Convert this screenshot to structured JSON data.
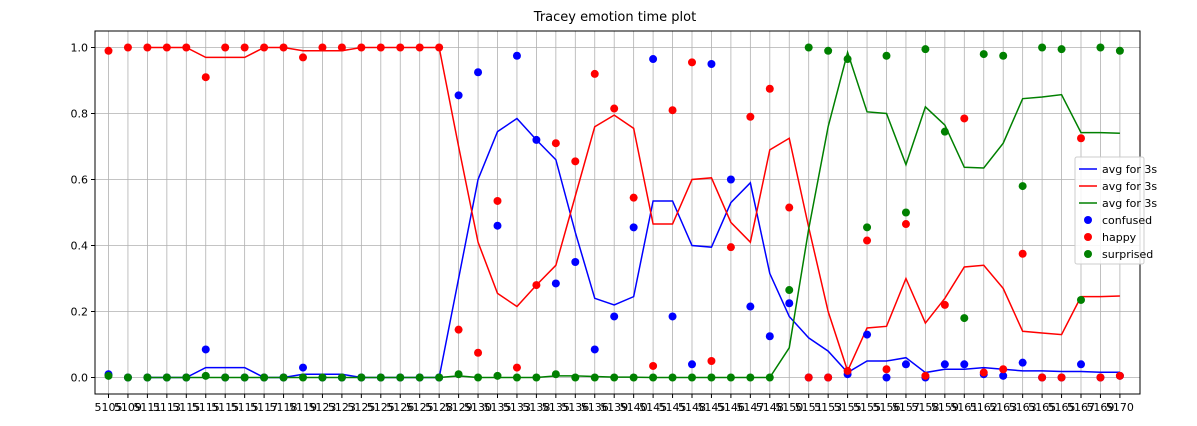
{
  "chart_data": {
    "type": "line",
    "title": "Tracey emotion time plot",
    "xlabel": "",
    "ylabel": "",
    "ylim": [
      -0.05,
      1.05
    ],
    "yticks": [
      "0.0",
      "0.2",
      "0.4",
      "0.6",
      "0.8",
      "1.0"
    ],
    "ytick_values": [
      0,
      0.2,
      0.4,
      0.6,
      0.8,
      1.0
    ],
    "xtick_labels": [
      "5105",
      "5109",
      "5111",
      "5113",
      "5115",
      "5115",
      "5115",
      "5115",
      "5117",
      "5118",
      "5119",
      "5123",
      "5123",
      "5125",
      "5125",
      "5126",
      "5125",
      "5128",
      "5129",
      "5130",
      "5135",
      "5133",
      "5138",
      "5135",
      "5136",
      "5136",
      "5139",
      "5140",
      "5145",
      "5145",
      "5148",
      "5145",
      "5146",
      "5147",
      "5148",
      "5150",
      "5151",
      "5153",
      "5155",
      "5155",
      "5156",
      "5157",
      "5158",
      "5159",
      "5161",
      "5162",
      "5163",
      "5163",
      "5165",
      "5165",
      "5167",
      "5169",
      "5170"
    ],
    "grid": true,
    "legend_position": "right",
    "colors": {
      "confused": "#0000ff",
      "happy": "#ff0000",
      "surprised": "#008000"
    },
    "line_series": [
      {
        "name": "avg for 3s",
        "color": "#0000ff",
        "values": [
          null,
          null,
          0.0,
          0.0,
          0.0,
          0.03,
          0.03,
          0.03,
          0.0,
          0.0,
          0.01,
          0.01,
          0.01,
          0.0,
          0.0,
          0.0,
          0.0,
          0.0,
          0.3,
          0.6,
          0.745,
          0.785,
          0.72,
          0.66,
          0.44,
          0.24,
          0.22,
          0.245,
          0.535,
          0.535,
          0.4,
          0.395,
          0.53,
          0.59,
          0.315,
          0.185,
          0.12,
          0.08,
          0.015,
          0.05,
          0.05,
          0.06,
          0.015,
          0.025,
          0.025,
          0.03,
          0.025,
          0.02,
          0.02,
          0.018,
          0.018,
          0.016,
          0.016
        ]
      },
      {
        "name": "avg for 3s",
        "color": "#ff0000",
        "values": [
          null,
          null,
          1.0,
          1.0,
          1.0,
          0.97,
          0.97,
          0.97,
          1.0,
          1.0,
          0.99,
          0.99,
          0.99,
          1.0,
          1.0,
          1.0,
          1.0,
          1.0,
          0.7,
          0.41,
          0.255,
          0.215,
          0.28,
          0.34,
          0.55,
          0.76,
          0.795,
          0.755,
          0.465,
          0.465,
          0.6,
          0.605,
          0.47,
          0.41,
          0.69,
          0.725,
          0.455,
          0.2,
          0.02,
          0.15,
          0.155,
          0.3,
          0.165,
          0.24,
          0.335,
          0.34,
          0.27,
          0.14,
          0.135,
          0.13,
          0.245,
          0.245,
          0.247
        ]
      },
      {
        "name": "avg for 3s",
        "color": "#008000",
        "values": [
          null,
          null,
          0.0,
          0.0,
          0.0,
          0.0,
          0.0,
          0.0,
          0.0,
          0.0,
          0.0,
          0.0,
          0.0,
          0.0,
          0.0,
          0.0,
          0.0,
          0.0,
          0.005,
          0.0,
          0.0,
          0.0,
          0.0,
          0.005,
          0.005,
          0.003,
          0.001,
          0.001,
          0.0,
          0.0,
          0.0,
          0.0,
          0.0,
          0.0,
          0.0,
          0.09,
          0.45,
          0.76,
          0.985,
          0.805,
          0.8,
          0.645,
          0.82,
          0.765,
          0.637,
          0.635,
          0.71,
          0.845,
          0.85,
          0.857,
          0.742,
          0.742,
          0.74
        ]
      }
    ],
    "scatter_series": [
      {
        "name": "confused",
        "color": "#0000ff",
        "values": [
          0.01,
          0.0,
          0.0,
          0.0,
          0.0,
          0.085,
          0.0,
          0.0,
          0.0,
          0.0,
          0.03,
          0.0,
          0.0,
          0.0,
          0.0,
          0.0,
          0.0,
          0.0,
          0.855,
          0.925,
          0.46,
          0.975,
          0.72,
          0.285,
          0.35,
          0.085,
          0.185,
          0.455,
          0.965,
          0.185,
          0.04,
          0.95,
          0.6,
          0.215,
          0.125,
          0.225,
          0.0,
          0.0,
          0.01,
          0.13,
          0.0,
          0.04,
          0.0,
          0.04,
          0.04,
          0.01,
          0.005,
          0.045,
          0.0,
          0.0,
          0.04,
          0.0,
          0.005
        ]
      },
      {
        "name": "happy",
        "color": "#ff0000",
        "values": [
          0.99,
          1.0,
          1.0,
          1.0,
          1.0,
          0.91,
          1.0,
          1.0,
          1.0,
          1.0,
          0.97,
          1.0,
          1.0,
          1.0,
          1.0,
          1.0,
          1.0,
          1.0,
          0.145,
          0.075,
          0.535,
          0.03,
          0.28,
          0.71,
          0.655,
          0.92,
          0.815,
          0.545,
          0.035,
          0.81,
          0.955,
          0.05,
          0.395,
          0.79,
          0.875,
          0.515,
          0.0,
          0.0,
          0.02,
          0.415,
          0.025,
          0.465,
          0.005,
          0.22,
          0.785,
          0.015,
          0.025,
          0.375,
          0.0,
          0.0,
          0.725,
          0.0,
          0.005
        ]
      },
      {
        "name": "surprised",
        "color": "#008000",
        "values": [
          0.005,
          0.0,
          0.0,
          0.0,
          0.0,
          0.005,
          0.0,
          0.0,
          0.0,
          0.0,
          0.0,
          0.0,
          0.0,
          0.0,
          0.0,
          0.0,
          0.0,
          0.0,
          0.01,
          0.0,
          0.005,
          0.0,
          0.0,
          0.01,
          0.0,
          0.0,
          0.0,
          0.0,
          0.0,
          0.0,
          0.0,
          0.0,
          0.0,
          0.0,
          0.0,
          0.265,
          1.0,
          0.99,
          0.965,
          0.455,
          0.975,
          0.5,
          0.995,
          0.745,
          0.18,
          0.98,
          0.975,
          0.58,
          1.0,
          0.995,
          0.235,
          1.0,
          0.99
        ]
      }
    ],
    "legend": [
      {
        "label": "avg for 3s",
        "kind": "line",
        "color": "#0000ff"
      },
      {
        "label": "avg for 3s",
        "kind": "line",
        "color": "#ff0000"
      },
      {
        "label": "avg for 3s",
        "kind": "line",
        "color": "#008000"
      },
      {
        "label": "confused",
        "kind": "marker",
        "color": "#0000ff"
      },
      {
        "label": "happy",
        "kind": "marker",
        "color": "#ff0000"
      },
      {
        "label": "surprised",
        "kind": "marker",
        "color": "#008000"
      }
    ]
  }
}
